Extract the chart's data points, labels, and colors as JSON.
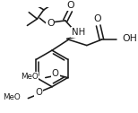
{
  "bg": "#ffffff",
  "lc": "#1a1a1a",
  "lw": 1.15,
  "fs": 6.8,
  "figw": 1.54,
  "figh": 1.26,
  "dpi": 100,
  "xlim": [
    0,
    154
  ],
  "ylim": [
    0,
    126
  ]
}
